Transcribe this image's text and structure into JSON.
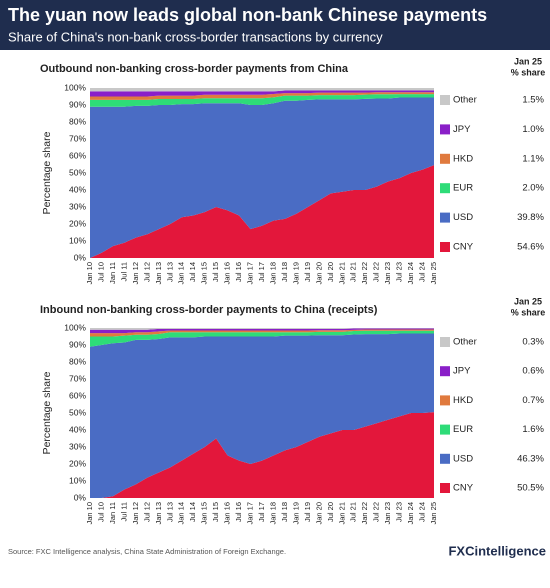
{
  "title": "The yuan now leads global non-bank Chinese payments",
  "subtitle": "Share of China's non-bank cross-border transactions by currency",
  "source": "Source: FXC Intelligence analysis, China State Administration of Foreign Exchange.",
  "logo": "FXCintelligence",
  "chart_data": [
    {
      "type": "area",
      "stacked": true,
      "title": "Outbound non-banking cross-border payments from China",
      "y_label": "Percentage share",
      "legend_title": [
        "Jan 25",
        "% share"
      ],
      "categories": [
        "Jan 10",
        "Jul 10",
        "Jan 11",
        "Jul 11",
        "Jan 12",
        "Jul 12",
        "Jan 13",
        "Jul 13",
        "Jan 14",
        "Jul 14",
        "Jan 15",
        "Jul 15",
        "Jan 16",
        "Jul 16",
        "Jan 17",
        "Jul 17",
        "Jan 18",
        "Jul 18",
        "Jan 19",
        "Jul 19",
        "Jan 20",
        "Jul 20",
        "Jan 21",
        "Jul 21",
        "Jan 22",
        "Jul 22",
        "Jan 23",
        "Jul 23",
        "Jan 24",
        "Jul 24",
        "Jan 25"
      ],
      "ylim": [
        0,
        100
      ],
      "yticks": [
        {
          "value": 0,
          "label": "0%"
        },
        {
          "value": 10,
          "label": "10%"
        },
        {
          "value": 20,
          "label": "20%"
        },
        {
          "value": 30,
          "label": "30%"
        },
        {
          "value": 40,
          "label": "40%"
        },
        {
          "value": 50,
          "label": "50%"
        },
        {
          "value": 60,
          "label": "60%"
        },
        {
          "value": 70,
          "label": "70%"
        },
        {
          "value": 80,
          "label": "80%"
        },
        {
          "value": 90,
          "label": "90%"
        },
        {
          "value": 100,
          "label": "100%"
        }
      ],
      "series": [
        {
          "name": "CNY",
          "color": "#e3173b",
          "share_label": "54.6%",
          "values": [
            0,
            3,
            7,
            9,
            12,
            14,
            17,
            20,
            24,
            25,
            27,
            30,
            28,
            25,
            17,
            19,
            22,
            23,
            26,
            30,
            34,
            38,
            39,
            40,
            40,
            42,
            45,
            47,
            50,
            52,
            54.6
          ]
        },
        {
          "name": "USD",
          "color": "#4a6cc4",
          "share_label": "39.8%",
          "values": [
            89,
            86,
            82,
            80,
            77.5,
            75.5,
            73,
            70,
            66.5,
            65.5,
            64,
            61,
            63,
            66,
            73,
            71,
            69,
            69.5,
            66.5,
            63,
            59.3,
            55.3,
            54.3,
            53.3,
            53.6,
            51.8,
            48.8,
            47.4,
            44.4,
            42.4,
            39.8
          ]
        },
        {
          "name": "EUR",
          "color": "#2edc78",
          "share_label": "2.0%",
          "values": [
            4,
            4,
            4,
            4,
            3.5,
            3.5,
            3.5,
            3.5,
            3,
            3,
            3,
            3,
            3,
            3,
            4,
            4,
            3.5,
            3,
            3,
            2.5,
            2.5,
            2.5,
            2.5,
            2.5,
            2.5,
            2.5,
            2.5,
            2,
            2,
            2,
            2
          ]
        },
        {
          "name": "HKD",
          "color": "#e07a3e",
          "share_label": "1.1%",
          "values": [
            2,
            2,
            2,
            2,
            2,
            2,
            2,
            2,
            2,
            2,
            2,
            2,
            2,
            2,
            2,
            2,
            2,
            1.5,
            1.5,
            1.5,
            1.5,
            1.5,
            1.5,
            1.5,
            1.2,
            1.2,
            1.2,
            1.1,
            1.1,
            1.1,
            1.1
          ]
        },
        {
          "name": "JPY",
          "color": "#8a1fc8",
          "share_label": "1.0%",
          "values": [
            3,
            3,
            3,
            3,
            3,
            3,
            2.5,
            2.5,
            2.5,
            2.5,
            2,
            2,
            2,
            2,
            2,
            2,
            1.5,
            1.5,
            1.5,
            1.5,
            1.2,
            1.2,
            1.2,
            1.2,
            1.2,
            1,
            1,
            1,
            1,
            1,
            1
          ]
        },
        {
          "name": "Other",
          "color": "#c8c8c8",
          "share_label": "1.5%",
          "values": [
            2,
            2,
            2,
            2,
            2,
            2,
            2,
            2,
            2,
            2,
            2,
            2,
            2,
            2,
            2,
            2,
            2,
            1.5,
            1.5,
            1.5,
            1.5,
            1.5,
            1.5,
            1.5,
            1.5,
            1.5,
            1.5,
            1.5,
            1.5,
            1.5,
            1.5
          ]
        }
      ]
    },
    {
      "type": "area",
      "stacked": true,
      "title": "Inbound non-banking cross-border payments to China (receipts)",
      "y_label": "Percentage share",
      "legend_title": [
        "Jan 25",
        "% share"
      ],
      "categories": [
        "Jan 10",
        "Jul 10",
        "Jan 11",
        "Jul 11",
        "Jan 12",
        "Jul 12",
        "Jan 13",
        "Jul 13",
        "Jan 14",
        "Jul 14",
        "Jan 15",
        "Jul 15",
        "Jan 16",
        "Jul 16",
        "Jan 17",
        "Jul 17",
        "Jan 18",
        "Jul 18",
        "Jan 19",
        "Jul 19",
        "Jan 20",
        "Jul 20",
        "Jan 21",
        "Jul 21",
        "Jan 22",
        "Jul 22",
        "Jan 23",
        "Jul 23",
        "Jan 24",
        "Jul 24",
        "Jan 25"
      ],
      "ylim": [
        0,
        100
      ],
      "yticks": [
        {
          "value": 0,
          "label": "0%"
        },
        {
          "value": 10,
          "label": "10%"
        },
        {
          "value": 20,
          "label": "20%"
        },
        {
          "value": 30,
          "label": "30%"
        },
        {
          "value": 40,
          "label": "40%"
        },
        {
          "value": 50,
          "label": "50%"
        },
        {
          "value": 60,
          "label": "60%"
        },
        {
          "value": 70,
          "label": "70%"
        },
        {
          "value": 80,
          "label": "80%"
        },
        {
          "value": 90,
          "label": "90%"
        },
        {
          "value": 100,
          "label": "100%"
        }
      ],
      "series": [
        {
          "name": "CNY",
          "color": "#e3173b",
          "share_label": "50.5%",
          "values": [
            0,
            0,
            1,
            5,
            8,
            12,
            15,
            18,
            22,
            26,
            30,
            35,
            25,
            22,
            20,
            22,
            25,
            28,
            30,
            33,
            36,
            38,
            40,
            40,
            42,
            44,
            46,
            48,
            50,
            50,
            50.5
          ]
        },
        {
          "name": "USD",
          "color": "#4a6cc4",
          "share_label": "46.3%",
          "values": [
            89,
            90,
            90,
            86.5,
            85,
            81,
            78.5,
            76.5,
            72.5,
            68.5,
            65,
            60,
            70,
            73,
            75,
            73,
            70,
            67.5,
            65.5,
            62.5,
            59.7,
            57.7,
            55.7,
            56.2,
            54.4,
            52.4,
            50.4,
            48.8,
            46.8,
            46.8,
            46.3
          ]
        },
        {
          "name": "EUR",
          "color": "#2edc78",
          "share_label": "1.6%",
          "values": [
            6,
            5,
            4,
            4,
            3,
            3,
            3,
            3,
            3,
            3,
            2.5,
            2.5,
            2.5,
            2.5,
            2.5,
            2.5,
            2.5,
            2,
            2,
            2,
            2,
            2,
            2,
            2,
            2,
            2,
            2,
            1.6,
            1.6,
            1.6,
            1.6
          ]
        },
        {
          "name": "HKD",
          "color": "#e07a3e",
          "share_label": "0.7%",
          "values": [
            2,
            2,
            2,
            1.5,
            1.5,
            1.5,
            1.5,
            1,
            1,
            1,
            1,
            1,
            1,
            1,
            1,
            1,
            1,
            1,
            1,
            1,
            1,
            1,
            1,
            0.7,
            0.7,
            0.7,
            0.7,
            0.7,
            0.7,
            0.7,
            0.7
          ]
        },
        {
          "name": "JPY",
          "color": "#8a1fc8",
          "share_label": "0.6%",
          "values": [
            2,
            2,
            2,
            2,
            1.5,
            1.5,
            1.5,
            1,
            1,
            1,
            1,
            1,
            1,
            1,
            1,
            1,
            1,
            1,
            1,
            1,
            0.8,
            0.8,
            0.8,
            0.8,
            0.6,
            0.6,
            0.6,
            0.6,
            0.6,
            0.6,
            0.6
          ]
        },
        {
          "name": "Other",
          "color": "#c8c8c8",
          "share_label": "0.3%",
          "values": [
            1,
            1,
            1,
            1,
            1,
            1,
            0.5,
            0.5,
            0.5,
            0.5,
            0.5,
            0.5,
            0.5,
            0.5,
            0.5,
            0.5,
            0.5,
            0.5,
            0.5,
            0.5,
            0.5,
            0.5,
            0.5,
            0.3,
            0.3,
            0.3,
            0.3,
            0.3,
            0.3,
            0.3,
            0.3
          ]
        }
      ]
    }
  ]
}
